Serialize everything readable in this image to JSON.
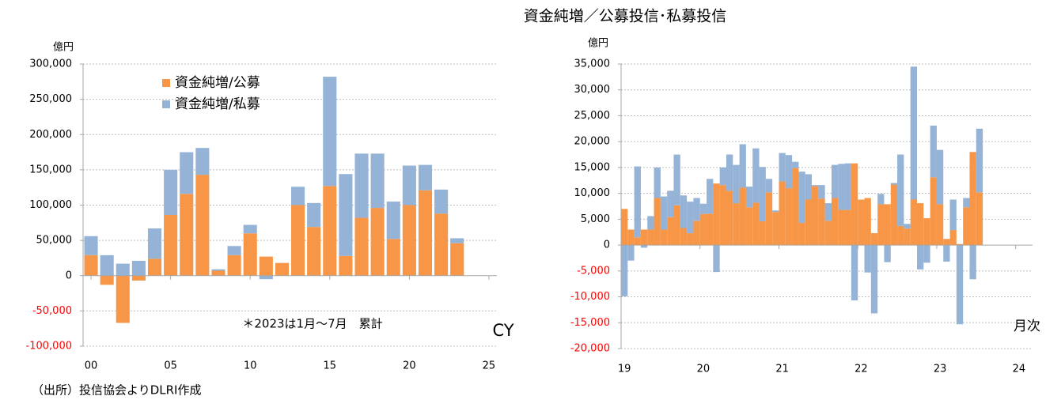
{
  "title": "資金純増／公募投信･私募投信",
  "source": "（出所）投信協会よりDLRI作成",
  "chart_data": [
    {
      "type": "bar",
      "stacked": true,
      "y_unit": "億円",
      "annotations": [
        "＊2023は1月～7月　累計",
        "CY"
      ],
      "legend": "upper left",
      "grid": true,
      "negative_tick_color": "#ff0000",
      "x": [
        0,
        1,
        2,
        3,
        4,
        5,
        6,
        7,
        8,
        9,
        10,
        11,
        12,
        13,
        14,
        15,
        16,
        17,
        18,
        19,
        20,
        21,
        22,
        23
      ],
      "xlim": [
        -0.5,
        25.5
      ],
      "xticks": [
        {
          "value": 0,
          "label": "00"
        },
        {
          "value": 5,
          "label": "05"
        },
        10,
        15,
        20,
        25
      ],
      "ylim": [
        -100000,
        300000
      ],
      "yticks": [
        {
          "value": -100000,
          "label": "-100,000"
        },
        {
          "value": -50000,
          "label": "-50,000"
        },
        0,
        {
          "value": 50000,
          "label": "50,000"
        },
        {
          "value": 100000,
          "label": "100,000"
        },
        {
          "value": 150000,
          "label": "150,000"
        },
        {
          "value": 200000,
          "label": "200,000"
        },
        {
          "value": 250000,
          "label": "250,000"
        },
        {
          "value": 300000,
          "label": "300,000"
        }
      ],
      "series": [
        {
          "name": "資金純増/公募",
          "color": "#f79646",
          "values": [
            29000,
            -13000,
            -67000,
            -7000,
            24000,
            86000,
            116000,
            143000,
            7000,
            29000,
            60000,
            27000,
            18000,
            100000,
            69000,
            127000,
            28000,
            82000,
            96000,
            52000,
            100000,
            121000,
            88000,
            46000
          ]
        },
        {
          "name": "資金純増/私募",
          "color": "#95b3d7",
          "values": [
            27000,
            29000,
            17000,
            21000,
            43000,
            64000,
            59000,
            38000,
            2000,
            13000,
            12000,
            -5000,
            0,
            26000,
            34000,
            155000,
            116000,
            91000,
            77000,
            53000,
            56000,
            36000,
            34000,
            7000
          ]
        }
      ]
    },
    {
      "type": "bar",
      "stacked": true,
      "y_unit": "億円",
      "annotations": [
        "月次"
      ],
      "grid": true,
      "negative_tick_color": "#ff0000",
      "categories": [
        "19",
        null,
        null,
        null,
        null,
        null,
        null,
        null,
        null,
        null,
        null,
        null,
        "20",
        null,
        null,
        null,
        null,
        null,
        null,
        null,
        null,
        null,
        null,
        null,
        "21",
        null,
        null,
        null,
        null,
        null,
        null,
        null,
        null,
        null,
        null,
        null,
        "22",
        null,
        null,
        null,
        null,
        null,
        null,
        null,
        null,
        null,
        null,
        null,
        "23",
        null,
        null,
        null,
        null,
        null,
        null,
        null,
        null,
        null,
        null,
        null,
        "24"
      ],
      "ylim": [
        -20000,
        35000
      ],
      "yticks": [
        {
          "value": -20000,
          "label": "-20,000"
        },
        {
          "value": -15000,
          "label": "-15,000"
        },
        {
          "value": -10000,
          "label": "-10,000"
        },
        {
          "value": -5000,
          "label": "-5,000"
        },
        0,
        {
          "value": 5000,
          "label": "5,000"
        },
        {
          "value": 10000,
          "label": "10,000"
        },
        {
          "value": 15000,
          "label": "15,000"
        },
        {
          "value": 20000,
          "label": "20,000"
        },
        {
          "value": 25000,
          "label": "25,000"
        },
        {
          "value": 30000,
          "label": "30,000"
        },
        {
          "value": 35000,
          "label": "35,000"
        }
      ],
      "series": [
        {
          "color": "#f79646",
          "values": [
            7000,
            3000,
            1500,
            3000,
            3000,
            9100,
            3000,
            5400,
            7700,
            3300,
            2300,
            4700,
            6000,
            6100,
            11900,
            11600,
            10500,
            8100,
            11100,
            7300,
            8200,
            4600,
            10200,
            6400,
            12300,
            11000,
            14900,
            4300,
            8800,
            11400,
            9000,
            4700,
            9100,
            6800,
            6800,
            15800,
            8800,
            9100,
            2300,
            7900,
            7900,
            11700,
            3700,
            3200,
            8800,
            8100,
            5200,
            13100,
            7900,
            1200,
            2900,
            200,
            7300,
            18000,
            10200,
            null,
            null,
            null,
            null,
            null,
            null
          ]
        },
        {
          "color": "#95b3d7",
          "values": [
            -9900,
            -3000,
            13700,
            -500,
            2600,
            5900,
            6400,
            5100,
            9800,
            6300,
            6100,
            4400,
            2000,
            6700,
            -5200,
            3400,
            7000,
            7400,
            8400,
            4000,
            10500,
            10500,
            2600,
            300,
            5500,
            6400,
            1200,
            9900,
            4900,
            200,
            2600,
            3400,
            6400,
            8900,
            9000,
            -10700,
            0,
            -5300,
            -13200,
            2000,
            -3300,
            300,
            13800,
            900,
            25700,
            -4700,
            -3400,
            10000,
            10500,
            -3200,
            5900,
            -15300,
            1800,
            -6600,
            12300,
            null,
            null,
            null,
            null,
            null,
            null
          ]
        }
      ]
    }
  ]
}
